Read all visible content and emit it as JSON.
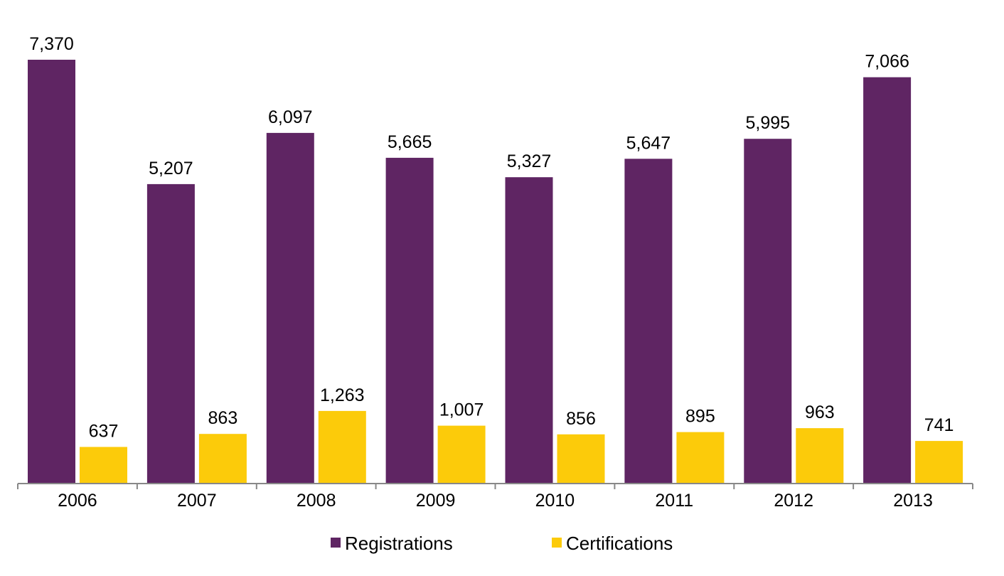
{
  "chart_data": {
    "type": "bar",
    "categories": [
      "2006",
      "2007",
      "2008",
      "2009",
      "2010",
      "2011",
      "2012",
      "2013"
    ],
    "series": [
      {
        "name": "Registrations",
        "values": [
          7370,
          5207,
          6097,
          5665,
          5327,
          5647,
          5995,
          7066
        ],
        "labels": [
          "7,370",
          "5,207",
          "6,097",
          "5,665",
          "5,327",
          "5,647",
          "5,995",
          "7,066"
        ],
        "color": "#5f2563"
      },
      {
        "name": "Certifications",
        "values": [
          637,
          863,
          1263,
          1007,
          856,
          895,
          963,
          741
        ],
        "labels": [
          "637",
          "863",
          "1,263",
          "1,007",
          "856",
          "895",
          "963",
          "741"
        ],
        "color": "#fccb0a"
      }
    ],
    "ylim": [
      0,
      7370
    ],
    "grid": false,
    "legend": "bottom-center"
  }
}
